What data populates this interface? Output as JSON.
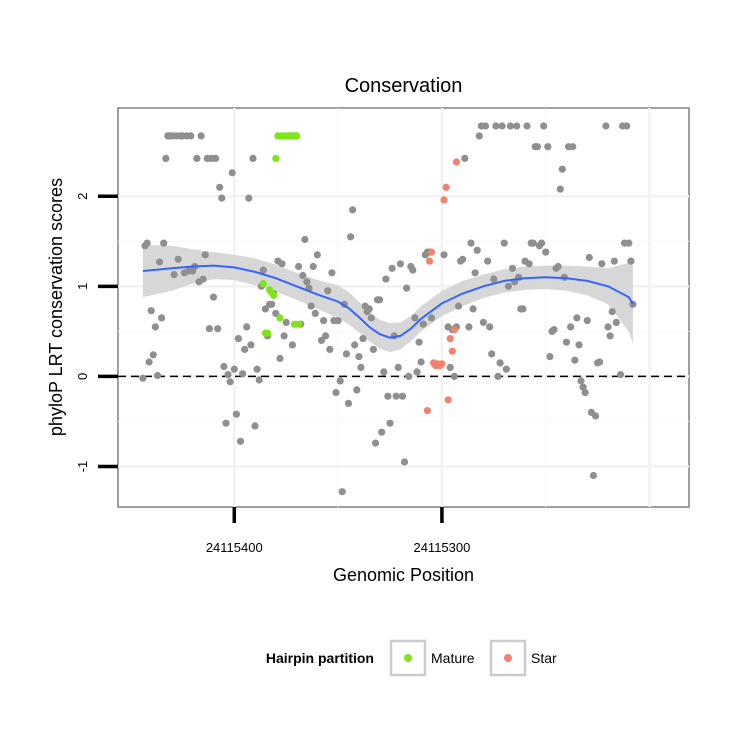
{
  "chart_data": {
    "type": "scatter",
    "title": "Conservation",
    "xlabel": "Genomic Position",
    "ylabel": "phyloP LRT conservation scores",
    "x_reversed": true,
    "xlim": [
      24115456,
      24115181
    ],
    "ylim": [
      -1.45,
      2.98
    ],
    "x_ticks": [
      24115400,
      24115300
    ],
    "x_tick_labels": [
      "24115400",
      "24115300"
    ],
    "y_ticks": [
      -1,
      0,
      1,
      2
    ],
    "y_tick_labels": [
      "-1",
      "0",
      "1",
      "2"
    ],
    "grid": true,
    "reference_line": {
      "y": 0,
      "style": "dashed"
    },
    "legend": {
      "title": "Hairpin partition",
      "position": "bottom",
      "entries": [
        {
          "label": "Mature",
          "color": "#7FE51A"
        },
        {
          "label": "Star",
          "color": "#F4806E"
        }
      ]
    },
    "colors": {
      "other": "#8F8F8F",
      "mature": "#7FE51A",
      "star": "#F4806E",
      "smooth": "#3366FF",
      "band": "#D3D3D3"
    },
    "series": [
      {
        "name": "",
        "group": "other",
        "points": [
          [
            24115444,
            -0.02
          ],
          [
            24115443,
            1.45
          ],
          [
            24115442,
            1.48
          ],
          [
            24115441,
            0.16
          ],
          [
            24115440,
            0.73
          ],
          [
            24115439,
            0.24
          ],
          [
            24115438,
            0.55
          ],
          [
            24115437,
            0.01
          ],
          [
            24115436,
            1.27
          ],
          [
            24115435,
            0.65
          ],
          [
            24115434,
            1.48
          ],
          [
            24115433,
            2.42
          ],
          [
            24115432,
            2.67
          ],
          [
            24115431,
            2.67
          ],
          [
            24115430,
            2.67
          ],
          [
            24115429,
            1.13
          ],
          [
            24115428,
            2.67
          ],
          [
            24115427,
            1.3
          ],
          [
            24115426,
            2.67
          ],
          [
            24115425,
            2.67
          ],
          [
            24115424,
            1.15
          ],
          [
            24115423,
            2.67
          ],
          [
            24115422,
            1.17
          ],
          [
            24115421,
            2.67
          ],
          [
            24115420,
            1.17
          ],
          [
            24115419,
            1.22
          ],
          [
            24115418,
            2.42
          ],
          [
            24115417,
            1.05
          ],
          [
            24115416,
            2.67
          ],
          [
            24115415,
            1.08
          ],
          [
            24115414,
            1.35
          ],
          [
            24115413,
            2.42
          ],
          [
            24115412,
            0.53
          ],
          [
            24115411,
            2.42
          ],
          [
            24115410,
            0.88
          ],
          [
            24115409,
            2.42
          ],
          [
            24115408,
            0.53
          ],
          [
            24115407,
            2.1
          ],
          [
            24115406,
            1.98
          ],
          [
            24115405,
            0.11
          ],
          [
            24115404,
            -0.52
          ],
          [
            24115403,
            0.02
          ],
          [
            24115402,
            -0.06
          ],
          [
            24115401,
            2.26
          ],
          [
            24115400,
            0.08
          ],
          [
            24115399,
            -0.42
          ],
          [
            24115398,
            0.42
          ],
          [
            24115397,
            -0.72
          ],
          [
            24115396,
            0.03
          ],
          [
            24115395,
            0.3
          ],
          [
            24115394,
            0.55
          ],
          [
            24115393,
            1.98
          ],
          [
            24115392,
            0.35
          ],
          [
            24115391,
            2.42
          ],
          [
            24115390,
            -0.55
          ],
          [
            24115389,
            0.08
          ],
          [
            24115388,
            -0.04
          ],
          [
            24115387,
            1.0
          ],
          [
            24115386,
            1.18
          ],
          [
            24115385,
            0.75
          ],
          [
            24115384,
            0.45
          ],
          [
            24115383,
            0.8
          ],
          [
            24115382,
            0.8
          ],
          [
            24115381,
            0.92
          ],
          [
            24115380,
            0.7
          ],
          [
            24115379,
            1.28
          ],
          [
            24115378,
            0.2
          ],
          [
            24115377,
            1.25
          ],
          [
            24115376,
            0.45
          ],
          [
            24115375,
            0.6
          ],
          [
            24115373,
            2.67
          ],
          [
            24115372,
            0.35
          ],
          [
            24115371,
            2.67
          ],
          [
            24115370,
            2.67
          ],
          [
            24115369,
            1.22
          ],
          [
            24115368,
            0.58
          ],
          [
            24115367,
            1.12
          ],
          [
            24115366,
            1.52
          ],
          [
            24115365,
            1.05
          ],
          [
            24115364,
            0.98
          ],
          [
            24115363,
            0.78
          ],
          [
            24115362,
            1.22
          ],
          [
            24115361,
            0.7
          ],
          [
            24115360,
            1.35
          ],
          [
            24115358,
            0.4
          ],
          [
            24115357,
            0.62
          ],
          [
            24115356,
            0.45
          ],
          [
            24115355,
            0.95
          ],
          [
            24115354,
            0.3
          ],
          [
            24115353,
            1.15
          ],
          [
            24115352,
            0.62
          ],
          [
            24115351,
            -0.18
          ],
          [
            24115350,
            0.62
          ],
          [
            24115349,
            -0.05
          ],
          [
            24115348,
            -1.28
          ],
          [
            24115347,
            0.8
          ],
          [
            24115346,
            0.25
          ],
          [
            24115345,
            -0.3
          ],
          [
            24115344,
            1.55
          ],
          [
            24115343,
            1.85
          ],
          [
            24115342,
            0.35
          ],
          [
            24115341,
            -0.15
          ],
          [
            24115340,
            0.22
          ],
          [
            24115339,
            0.1
          ],
          [
            24115338,
            0.42
          ],
          [
            24115337,
            0.78
          ],
          [
            24115336,
            0.72
          ],
          [
            24115335,
            0.75
          ],
          [
            24115334,
            0.65
          ],
          [
            24115333,
            0.3
          ],
          [
            24115332,
            -0.74
          ],
          [
            24115331,
            0.85
          ],
          [
            24115330,
            0.85
          ],
          [
            24115329,
            -0.62
          ],
          [
            24115328,
            0.05
          ],
          [
            24115327,
            1.08
          ],
          [
            24115326,
            -0.22
          ],
          [
            24115325,
            -0.52
          ],
          [
            24115324,
            1.2
          ],
          [
            24115323,
            0.45
          ],
          [
            24115322,
            -0.22
          ],
          [
            24115321,
            0.1
          ],
          [
            24115320,
            1.25
          ],
          [
            24115319,
            -0.22
          ],
          [
            24115318,
            -0.95
          ],
          [
            24115317,
            0.98
          ],
          [
            24115316,
            0.0
          ],
          [
            24115315,
            1.22
          ],
          [
            24115314,
            1.18
          ],
          [
            24115313,
            0.65
          ],
          [
            24115312,
            0.05
          ],
          [
            24115311,
            0.38
          ],
          [
            24115310,
            0.16
          ],
          [
            24115309,
            0.58
          ],
          [
            24115308,
            1.35
          ],
          [
            24115307,
            1.38
          ],
          [
            24115306,
            1.38
          ],
          [
            24115305,
            0.65
          ],
          [
            24115299,
            1.35
          ],
          [
            24115297,
            0.55
          ],
          [
            24115296,
            0.1
          ],
          [
            24115295,
            0.52
          ],
          [
            24115294,
            0.0
          ],
          [
            24115293,
            0.55
          ],
          [
            24115292,
            0.78
          ],
          [
            24115291,
            1.28
          ],
          [
            24115290,
            1.3
          ],
          [
            24115289,
            2.42
          ],
          [
            24115287,
            0.55
          ],
          [
            24115286,
            1.48
          ],
          [
            24115285,
            0.75
          ],
          [
            24115284,
            1.15
          ],
          [
            24115283,
            1.4
          ],
          [
            24115282,
            2.67
          ],
          [
            24115281,
            2.78
          ],
          [
            24115280,
            0.6
          ],
          [
            24115279,
            2.78
          ],
          [
            24115278,
            1.28
          ],
          [
            24115277,
            0.55
          ],
          [
            24115276,
            0.25
          ],
          [
            24115275,
            1.08
          ],
          [
            24115274,
            2.78
          ],
          [
            24115273,
            0.0
          ],
          [
            24115272,
            0.15
          ],
          [
            24115271,
            2.78
          ],
          [
            24115270,
            1.48
          ],
          [
            24115269,
            0.08
          ],
          [
            24115268,
            1.0
          ],
          [
            24115267,
            2.78
          ],
          [
            24115266,
            1.2
          ],
          [
            24115265,
            1.05
          ],
          [
            24115264,
            2.78
          ],
          [
            24115263,
            1.1
          ],
          [
            24115262,
            0.75
          ],
          [
            24115261,
            0.75
          ],
          [
            24115260,
            1.28
          ],
          [
            24115259,
            2.78
          ],
          [
            24115258,
            1.25
          ],
          [
            24115257,
            1.48
          ],
          [
            24115256,
            1.48
          ],
          [
            24115255,
            2.55
          ],
          [
            24115254,
            2.55
          ],
          [
            24115253,
            1.45
          ],
          [
            24115252,
            1.48
          ],
          [
            24115251,
            2.78
          ],
          [
            24115250,
            1.38
          ],
          [
            24115249,
            2.55
          ],
          [
            24115248,
            0.22
          ],
          [
            24115247,
            0.5
          ],
          [
            24115246,
            0.52
          ],
          [
            24115245,
            1.2
          ],
          [
            24115244,
            1.22
          ],
          [
            24115243,
            2.08
          ],
          [
            24115242,
            2.3
          ],
          [
            24115241,
            1.1
          ],
          [
            24115240,
            0.38
          ],
          [
            24115239,
            2.55
          ],
          [
            24115238,
            0.55
          ],
          [
            24115237,
            2.55
          ],
          [
            24115236,
            0.18
          ],
          [
            24115235,
            0.65
          ],
          [
            24115234,
            0.35
          ],
          [
            24115233,
            -0.05
          ],
          [
            24115232,
            -0.12
          ],
          [
            24115231,
            -0.18
          ],
          [
            24115230,
            0.62
          ],
          [
            24115229,
            1.32
          ],
          [
            24115228,
            -0.4
          ],
          [
            24115227,
            -1.1
          ],
          [
            24115226,
            -0.44
          ],
          [
            24115225,
            0.15
          ],
          [
            24115224,
            0.16
          ],
          [
            24115223,
            1.25
          ],
          [
            24115221,
            2.78
          ],
          [
            24115220,
            0.55
          ],
          [
            24115219,
            0.45
          ],
          [
            24115218,
            0.72
          ],
          [
            24115217,
            1.28
          ],
          [
            24115216,
            0.6
          ],
          [
            24115214,
            0.02
          ],
          [
            24115213,
            2.78
          ],
          [
            24115212,
            1.48
          ],
          [
            24115211,
            2.78
          ],
          [
            24115210,
            1.48
          ],
          [
            24115209,
            1.28
          ],
          [
            24115208,
            0.8
          ]
        ]
      },
      {
        "name": "Mature",
        "group": "mature",
        "points": [
          [
            24115386,
            1.03
          ],
          [
            24115385,
            0.48
          ],
          [
            24115384,
            0.48
          ],
          [
            24115383,
            0.96
          ],
          [
            24115382,
            0.93
          ],
          [
            24115381,
            0.9
          ],
          [
            24115380,
            2.42
          ],
          [
            24115379,
            2.67
          ],
          [
            24115378,
            0.65
          ],
          [
            24115377,
            2.67
          ],
          [
            24115376,
            2.67
          ],
          [
            24115375,
            2.67
          ],
          [
            24115374,
            2.67
          ],
          [
            24115373,
            2.67
          ],
          [
            24115372,
            2.67
          ],
          [
            24115371,
            0.58
          ],
          [
            24115370,
            2.67
          ],
          [
            24115369,
            0.58
          ]
        ]
      },
      {
        "name": "Star",
        "group": "star",
        "points": [
          [
            24115307,
            -0.38
          ],
          [
            24115306,
            1.28
          ],
          [
            24115305,
            1.38
          ],
          [
            24115304,
            0.15
          ],
          [
            24115303,
            0.12
          ],
          [
            24115302,
            0.14
          ],
          [
            24115301,
            0.12
          ],
          [
            24115300,
            0.14
          ],
          [
            24115299,
            1.96
          ],
          [
            24115298,
            2.1
          ],
          [
            24115297,
            -0.26
          ],
          [
            24115296,
            0.42
          ],
          [
            24115295,
            0.28
          ],
          [
            24115294,
            0.52
          ],
          [
            24115293,
            2.38
          ]
        ]
      }
    ],
    "smooth_line": {
      "x": [
        24115444,
        24115430,
        24115420,
        24115410,
        24115400,
        24115390,
        24115380,
        24115370,
        24115360,
        24115350,
        24115345,
        24115340,
        24115335,
        24115330,
        24115325,
        24115320,
        24115315,
        24115310,
        24115300,
        24115290,
        24115280,
        24115270,
        24115260,
        24115250,
        24115240,
        24115230,
        24115220,
        24115210,
        24115208
      ],
      "y": [
        1.17,
        1.2,
        1.22,
        1.23,
        1.21,
        1.16,
        1.09,
        1.0,
        0.91,
        0.83,
        0.76,
        0.66,
        0.55,
        0.47,
        0.43,
        0.45,
        0.53,
        0.64,
        0.81,
        0.92,
        1.0,
        1.06,
        1.09,
        1.1,
        1.09,
        1.06,
        1.0,
        0.88,
        0.8
      ],
      "lower": [
        0.88,
        0.95,
        1.03,
        1.08,
        1.07,
        1.01,
        0.94,
        0.85,
        0.75,
        0.65,
        0.58,
        0.49,
        0.39,
        0.31,
        0.27,
        0.3,
        0.39,
        0.5,
        0.67,
        0.78,
        0.87,
        0.93,
        0.96,
        0.97,
        0.95,
        0.9,
        0.8,
        0.5,
        0.36
      ],
      "upper": [
        1.46,
        1.45,
        1.41,
        1.38,
        1.35,
        1.31,
        1.24,
        1.15,
        1.07,
        1.01,
        0.94,
        0.83,
        0.71,
        0.63,
        0.59,
        0.6,
        0.67,
        0.78,
        0.95,
        1.06,
        1.13,
        1.19,
        1.22,
        1.23,
        1.23,
        1.22,
        1.2,
        1.26,
        1.24
      ]
    }
  }
}
